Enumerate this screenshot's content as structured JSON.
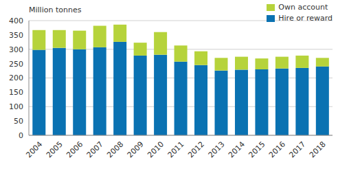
{
  "chart_data": {
    "type": "bar",
    "stacked": true,
    "y_label": "Million tonnes",
    "categories": [
      "2004",
      "2005",
      "2006",
      "2007",
      "2008",
      "2009",
      "2010",
      "2011",
      "2012",
      "2013",
      "2014",
      "2015",
      "2016",
      "2017",
      "2018"
    ],
    "series": [
      {
        "name": "Hire or reward",
        "color": "#0a72b2",
        "values": [
          298,
          305,
          300,
          307,
          326,
          278,
          281,
          257,
          245,
          226,
          229,
          230,
          233,
          235,
          240
        ]
      },
      {
        "name": "Own account",
        "color": "#b6d33b",
        "values": [
          69,
          62,
          65,
          75,
          60,
          45,
          79,
          56,
          48,
          44,
          45,
          38,
          41,
          43,
          30
        ]
      }
    ],
    "ylim": [
      0,
      400
    ],
    "yticks": [
      0,
      50,
      100,
      150,
      200,
      250,
      300,
      350,
      400
    ],
    "grid": true,
    "legend": "upper right"
  }
}
